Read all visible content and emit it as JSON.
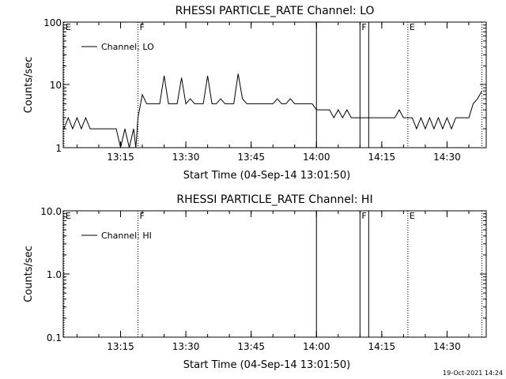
{
  "footer": {
    "timestamp": "19-Oct-2021 14:24"
  },
  "chart_data": [
    {
      "type": "line",
      "title": "RHESSI PARTICLE_RATE Channel: LO",
      "xlabel": "Start Time (04-Sep-14 13:01:50)",
      "ylabel": "Counts/sec",
      "yscale": "log",
      "ylim": [
        1,
        100
      ],
      "xlim_minutes": [
        "13:01:50",
        "14:39:00"
      ],
      "xticks": [
        "13:15",
        "13:30",
        "13:45",
        "14:00",
        "14:15",
        "14:30"
      ],
      "yticks": [
        "1",
        "10",
        "100"
      ],
      "legend": {
        "position": "upper-left",
        "entries": [
          "Channel: LO"
        ]
      },
      "markers": [
        {
          "time": "13:02",
          "label": "E",
          "style": "dotted"
        },
        {
          "time": "13:19",
          "label": "F",
          "style": "dotted"
        },
        {
          "time": "14:00",
          "label": "",
          "style": "solid"
        },
        {
          "time": "14:10",
          "label": "F",
          "style": "solid"
        },
        {
          "time": "14:12",
          "label": "",
          "style": "solid"
        },
        {
          "time": "14:21",
          "label": "E",
          "style": "dotted"
        },
        {
          "time": "14:38",
          "label": "",
          "style": "dotted"
        }
      ],
      "series": [
        {
          "name": "Channel: LO",
          "x": [
            "13:02",
            "13:03",
            "13:04",
            "13:05",
            "13:06",
            "13:07",
            "13:08",
            "13:09",
            "13:10",
            "13:11",
            "13:12",
            "13:13",
            "13:14",
            "13:15",
            "13:16",
            "13:17",
            "13:18",
            "13:18:30",
            "13:19",
            "13:20",
            "13:21",
            "13:22",
            "13:23",
            "13:24",
            "13:25",
            "13:26",
            "13:27",
            "13:28",
            "13:29",
            "13:30",
            "13:31",
            "13:32",
            "13:33",
            "13:34",
            "13:35",
            "13:36",
            "13:37",
            "13:38",
            "13:39",
            "13:40",
            "13:41",
            "13:42",
            "13:43",
            "13:44",
            "13:45",
            "13:46",
            "13:47",
            "13:48",
            "13:49",
            "13:50",
            "13:51",
            "13:52",
            "13:53",
            "13:54",
            "13:55",
            "13:56",
            "13:57",
            "13:58",
            "13:59",
            "14:00",
            "14:01",
            "14:02",
            "14:03",
            "14:04",
            "14:05",
            "14:06",
            "14:07",
            "14:08",
            "14:09",
            "14:10",
            "14:11",
            "14:12",
            "14:13",
            "14:14",
            "14:15",
            "14:16",
            "14:17",
            "14:18",
            "14:19",
            "14:20",
            "14:21",
            "14:22",
            "14:23",
            "14:24",
            "14:25",
            "14:26",
            "14:27",
            "14:28",
            "14:29",
            "14:30",
            "14:31",
            "14:32",
            "14:33",
            "14:34",
            "14:35",
            "14:36",
            "14:37",
            "14:38"
          ],
          "y": [
            2,
            3,
            2,
            3,
            2,
            3,
            2,
            2,
            2,
            2,
            2,
            2,
            2,
            1,
            2,
            1,
            2,
            1,
            3,
            7,
            5,
            5,
            5,
            5,
            14,
            5,
            5,
            5,
            13,
            5,
            6,
            5,
            5,
            5,
            14,
            5,
            5,
            6,
            5,
            5,
            5,
            15,
            6,
            5,
            5,
            5,
            5,
            5,
            5,
            5,
            6,
            5,
            5,
            6,
            5,
            5,
            5,
            5,
            5,
            4,
            4,
            4,
            4,
            3,
            4,
            3,
            4,
            3,
            3,
            3,
            3,
            3,
            3,
            3,
            3,
            3,
            3,
            3,
            4,
            3,
            3,
            3,
            2,
            3,
            2,
            3,
            2,
            3,
            2,
            3,
            2,
            3,
            3,
            3,
            3,
            5,
            6,
            8
          ]
        }
      ]
    },
    {
      "type": "line",
      "title": "RHESSI PARTICLE_RATE Channel: HI",
      "xlabel": "Start Time (04-Sep-14 13:01:50)",
      "ylabel": "Counts/sec",
      "yscale": "log",
      "ylim": [
        0.1,
        10
      ],
      "xlim_minutes": [
        "13:01:50",
        "14:39:00"
      ],
      "xticks": [
        "13:15",
        "13:30",
        "13:45",
        "14:00",
        "14:15",
        "14:30"
      ],
      "yticks": [
        "0.1",
        "1.0",
        "10.0"
      ],
      "legend": {
        "position": "upper-left",
        "entries": [
          "Channel: HI"
        ]
      },
      "markers": [
        {
          "time": "13:02",
          "label": "E",
          "style": "dotted"
        },
        {
          "time": "13:19",
          "label": "F",
          "style": "dotted"
        },
        {
          "time": "14:00",
          "label": "",
          "style": "solid"
        },
        {
          "time": "14:10",
          "label": "F",
          "style": "solid"
        },
        {
          "time": "14:12",
          "label": "",
          "style": "solid"
        },
        {
          "time": "14:21",
          "label": "E",
          "style": "dotted"
        },
        {
          "time": "14:38",
          "label": "",
          "style": "dotted"
        }
      ],
      "series": [
        {
          "name": "Channel: HI",
          "x": [],
          "y": []
        }
      ]
    }
  ]
}
